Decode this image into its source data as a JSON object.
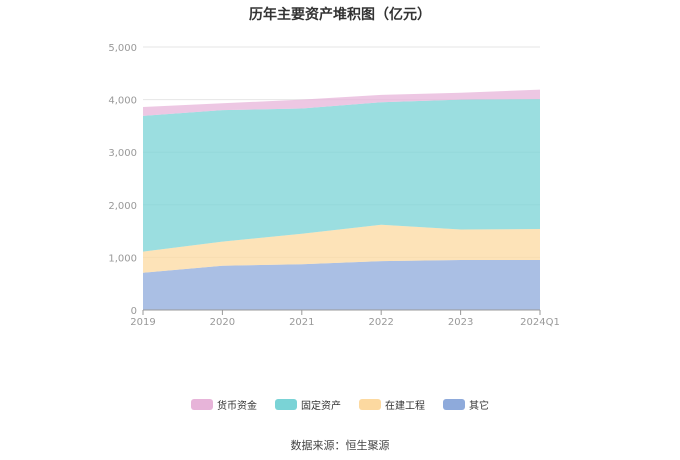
{
  "source": "数据来源：恒生聚源",
  "chart_data": {
    "type": "area",
    "stacked": true,
    "title": "历年主要资产堆积图（亿元）",
    "xlabel": "",
    "ylabel": "",
    "categories": [
      "2019",
      "2020",
      "2021",
      "2022",
      "2023",
      "2024Q1"
    ],
    "ylim": [
      0,
      5000
    ],
    "yticks": [
      0,
      1000,
      2000,
      3000,
      4000,
      5000
    ],
    "ytick_labels": [
      "0",
      "1,000",
      "2,000",
      "3,000",
      "4,000",
      "5,000"
    ],
    "grid": true,
    "legend_position": "bottom",
    "series": [
      {
        "name": "其它",
        "color": "#8eaadb",
        "values": [
          710,
          840,
          870,
          930,
          950,
          950
        ]
      },
      {
        "name": "在建工程",
        "color": "#fcd9a0",
        "values": [
          400,
          460,
          580,
          690,
          580,
          590
        ]
      },
      {
        "name": "固定资产",
        "color": "#7ad3d6",
        "values": [
          2580,
          2500,
          2380,
          2330,
          2470,
          2470
        ]
      },
      {
        "name": "货币资金",
        "color": "#e7b4d9",
        "values": [
          170,
          130,
          170,
          140,
          130,
          180
        ]
      }
    ],
    "legend_order": [
      "货币资金",
      "固定资产",
      "在建工程",
      "其它"
    ]
  }
}
